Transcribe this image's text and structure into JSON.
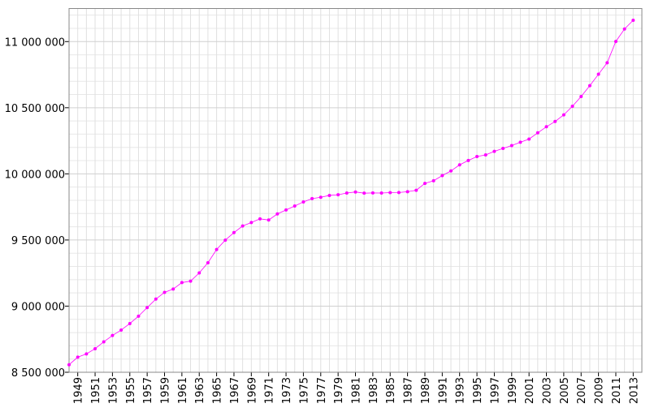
{
  "chart_data": {
    "type": "line",
    "color": "#ff00ff",
    "grid": true,
    "x": [
      1948,
      1949,
      1950,
      1951,
      1952,
      1953,
      1954,
      1955,
      1956,
      1957,
      1958,
      1959,
      1960,
      1961,
      1962,
      1963,
      1964,
      1965,
      1966,
      1967,
      1968,
      1969,
      1970,
      1971,
      1972,
      1973,
      1974,
      1975,
      1976,
      1977,
      1978,
      1979,
      1980,
      1981,
      1982,
      1983,
      1984,
      1985,
      1986,
      1987,
      1988,
      1989,
      1990,
      1991,
      1992,
      1993,
      1994,
      1995,
      1996,
      1997,
      1998,
      1999,
      2000,
      2001,
      2002,
      2003,
      2004,
      2005,
      2006,
      2007,
      2008,
      2009,
      2010,
      2011,
      2012,
      2013
    ],
    "values": [
      8557000,
      8614000,
      8639000,
      8678000,
      8730000,
      8778000,
      8819000,
      8868000,
      8924000,
      8989000,
      9053000,
      9104000,
      9129000,
      9178000,
      9189000,
      9251000,
      9328000,
      9428000,
      9499000,
      9556000,
      9606000,
      9632000,
      9660000,
      9651000,
      9697000,
      9727000,
      9757000,
      9788000,
      9813000,
      9823000,
      9837000,
      9842000,
      9855000,
      9863000,
      9854000,
      9856000,
      9855000,
      9858000,
      9859000,
      9865000,
      9876000,
      9928000,
      9948000,
      9987000,
      10022000,
      10068000,
      10101000,
      10131000,
      10143000,
      10170000,
      10192000,
      10214000,
      10239000,
      10263000,
      10310000,
      10356000,
      10396000,
      10446000,
      10511000,
      10585000,
      10667000,
      10753000,
      10840000,
      11001000,
      11095000,
      11161000
    ],
    "xlim": [
      1948,
      2014
    ],
    "xticks": [
      1949,
      1951,
      1953,
      1955,
      1957,
      1959,
      1961,
      1963,
      1965,
      1967,
      1969,
      1971,
      1973,
      1975,
      1977,
      1979,
      1981,
      1983,
      1985,
      1987,
      1989,
      1991,
      1993,
      1995,
      1997,
      1999,
      2001,
      2003,
      2005,
      2007,
      2009,
      2011,
      2013
    ],
    "ylim": [
      8500000,
      11250000
    ],
    "yticks": [
      {
        "value": 8500000,
        "label": "8 500 000"
      },
      {
        "value": 9000000,
        "label": "9 000 000"
      },
      {
        "value": 9500000,
        "label": "9 500 000"
      },
      {
        "value": 10000000,
        "label": "10 000 000"
      },
      {
        "value": 10500000,
        "label": "10 500 000"
      },
      {
        "value": 11000000,
        "label": "11 000 000"
      }
    ],
    "yminor": [
      8600000,
      8700000,
      8800000,
      8900000,
      9100000,
      9200000,
      9300000,
      9400000,
      9600000,
      9700000,
      9800000,
      9900000,
      10100000,
      10200000,
      10300000,
      10400000,
      10600000,
      10700000,
      10800000,
      10900000,
      11100000,
      11200000
    ]
  }
}
